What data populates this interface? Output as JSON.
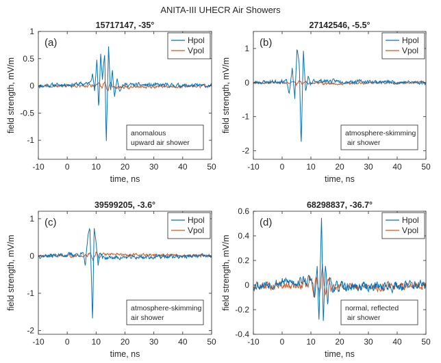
{
  "figure_title": "ANITA-III UHECR Air Showers",
  "colors": {
    "hpol": "#0072BD",
    "vpol": "#D95319",
    "axis": "#262626",
    "background": "#ffffff"
  },
  "chart_data": [
    {
      "type": "line",
      "title": "15717147, -35°",
      "panel_label": "(a)",
      "xlabel": "time, ns",
      "ylabel": "field strength, mV/m",
      "xlim": [
        -10,
        50
      ],
      "ylim": [
        -1.35,
        1.0
      ],
      "xticks": [
        -10,
        0,
        10,
        20,
        30,
        40,
        50
      ],
      "yticks": [
        -1,
        -0.5,
        0,
        0.5,
        1
      ],
      "ytick_labels": [
        "-1",
        "-0.5",
        "0",
        "0.5",
        "1"
      ],
      "legend": {
        "placement": "top-right",
        "entries": [
          "Hpol",
          "Vpol"
        ]
      },
      "annotation": [
        "anomalous",
        "upward air shower"
      ],
      "annotation_placement": "lower-right",
      "noise": {
        "hpol": 0.04,
        "vpol": 0.03,
        "seed": 11
      },
      "series": [
        {
          "name": "Hpol",
          "color": "#0072BD",
          "points": [
            [
              -10,
              0
            ],
            [
              7.5,
              0.04
            ],
            [
              8.8,
              0.22
            ],
            [
              9.5,
              -0.12
            ],
            [
              10.3,
              0.52
            ],
            [
              10.9,
              -0.43
            ],
            [
              11.6,
              0.6
            ],
            [
              12.2,
              0.1
            ],
            [
              13.0,
              0.62
            ],
            [
              13.5,
              -1.12
            ],
            [
              14.3,
              0.72
            ],
            [
              15.0,
              -0.15
            ],
            [
              15.6,
              0.3
            ],
            [
              16.4,
              -0.22
            ],
            [
              17.2,
              0.15
            ],
            [
              18.2,
              -0.08
            ],
            [
              19.0,
              0.02
            ],
            [
              50,
              0
            ]
          ]
        },
        {
          "name": "Vpol",
          "color": "#D95319",
          "points": [
            [
              -10,
              0
            ],
            [
              10,
              0
            ],
            [
              11,
              0.06
            ],
            [
              12,
              -0.05
            ],
            [
              13,
              0.1
            ],
            [
              14,
              -0.1
            ],
            [
              15,
              0.06
            ],
            [
              16,
              -0.03
            ],
            [
              50,
              0
            ]
          ]
        }
      ]
    },
    {
      "type": "line",
      "title": "27142546, -5.5°",
      "panel_label": "(b)",
      "xlabel": "time, ns",
      "ylabel": "field strength, mV/m",
      "xlim": [
        -10,
        50
      ],
      "ylim": [
        -2.25,
        1.5
      ],
      "xticks": [
        -10,
        0,
        10,
        20,
        30,
        40,
        50
      ],
      "yticks": [
        -2,
        -1,
        0,
        1
      ],
      "ytick_labels": [
        "-2",
        "-1",
        "0",
        "1"
      ],
      "legend": {
        "placement": "top-right",
        "entries": [
          "Hpol",
          "Vpol"
        ]
      },
      "annotation": [
        "atmosphere-skimming",
        " air shower"
      ],
      "annotation_placement": "lower-right",
      "noise": {
        "hpol": 0.06,
        "vpol": 0.04,
        "seed": 23
      },
      "series": [
        {
          "name": "Hpol",
          "color": "#0072BD",
          "points": [
            [
              -10,
              0
            ],
            [
              1.5,
              0.05
            ],
            [
              2.5,
              -0.35
            ],
            [
              3.5,
              0.45
            ],
            [
              4.4,
              -0.5
            ],
            [
              5.2,
              1.05
            ],
            [
              6.0,
              0.5
            ],
            [
              6.6,
              -1.85
            ],
            [
              7.4,
              0.9
            ],
            [
              8.2,
              -0.3
            ],
            [
              9.0,
              0.2
            ],
            [
              9.8,
              -0.1
            ],
            [
              11,
              0.05
            ],
            [
              50,
              0
            ]
          ]
        },
        {
          "name": "Vpol",
          "color": "#D95319",
          "points": [
            [
              -10,
              0
            ],
            [
              3,
              0
            ],
            [
              4,
              0.05
            ],
            [
              5,
              -0.06
            ],
            [
              6,
              0.08
            ],
            [
              7,
              -0.08
            ],
            [
              8,
              0.05
            ],
            [
              9,
              -0.03
            ],
            [
              50,
              0
            ]
          ]
        }
      ]
    },
    {
      "type": "line",
      "title": "39599205, -3.6°",
      "panel_label": "(c)",
      "xlabel": "time, ns",
      "ylabel": "field strength, mV/m",
      "xlim": [
        -10,
        50
      ],
      "ylim": [
        -2.1,
        1.2
      ],
      "xticks": [
        -10,
        0,
        10,
        20,
        30,
        40,
        50
      ],
      "yticks": [
        -2,
        -1,
        0,
        1
      ],
      "ytick_labels": [
        "-2",
        "-1",
        "0",
        "1"
      ],
      "legend": {
        "placement": "top-right",
        "entries": [
          "Hpol",
          "Vpol"
        ]
      },
      "annotation": [
        "atmosphere-skimming",
        "air shower"
      ],
      "annotation_placement": "lower-right",
      "noise": {
        "hpol": 0.06,
        "vpol": 0.04,
        "seed": 37
      },
      "series": [
        {
          "name": "Hpol",
          "color": "#0072BD",
          "points": [
            [
              -10,
              0
            ],
            [
              5.5,
              0.05
            ],
            [
              6.3,
              -0.25
            ],
            [
              7.0,
              0.4
            ],
            [
              7.8,
              0.78
            ],
            [
              8.3,
              -0.4
            ],
            [
              8.8,
              -1.8
            ],
            [
              9.3,
              0.85
            ],
            [
              10.0,
              0.3
            ],
            [
              10.7,
              -0.2
            ],
            [
              11.4,
              0.15
            ],
            [
              12.2,
              -0.05
            ],
            [
              50,
              0
            ]
          ]
        },
        {
          "name": "Vpol",
          "color": "#D95319",
          "points": [
            [
              -10,
              0
            ],
            [
              7,
              0
            ],
            [
              8,
              0.1
            ],
            [
              9,
              -0.12
            ],
            [
              10,
              0.12
            ],
            [
              11,
              -0.08
            ],
            [
              12,
              0.04
            ],
            [
              50,
              0
            ]
          ]
        }
      ]
    },
    {
      "type": "line",
      "title": "68298837, -36.7°",
      "panel_label": "(d)",
      "xlabel": "time, ns",
      "ylabel": "field strength, mV/m",
      "xlim": [
        -10,
        50
      ],
      "ylim": [
        -0.4,
        0.6
      ],
      "xticks": [
        -10,
        0,
        10,
        20,
        30,
        40,
        50
      ],
      "yticks": [
        -0.4,
        -0.2,
        0,
        0.2,
        0.4,
        0.6
      ],
      "ytick_labels": [
        "-0.4",
        "-0.2",
        "0",
        "0.2",
        "0.4",
        "0.6"
      ],
      "legend": {
        "placement": "top-right",
        "entries": [
          "Hpol",
          "Vpol"
        ]
      },
      "annotation": [
        "normal, reflected",
        " air shower"
      ],
      "annotation_placement": "lower-right",
      "noise": {
        "hpol": 0.045,
        "vpol": 0.035,
        "seed": 53
      },
      "series": [
        {
          "name": "Hpol",
          "color": "#0072BD",
          "points": [
            [
              -10,
              0
            ],
            [
              10.5,
              0.04
            ],
            [
              11.3,
              -0.12
            ],
            [
              12.2,
              0.14
            ],
            [
              12.8,
              -0.3
            ],
            [
              13.7,
              0.54
            ],
            [
              14.3,
              -0.32
            ],
            [
              15.0,
              0.15
            ],
            [
              15.8,
              -0.12
            ],
            [
              16.6,
              0.06
            ],
            [
              17.5,
              -0.02
            ],
            [
              50,
              0
            ]
          ]
        },
        {
          "name": "Vpol",
          "color": "#D95319",
          "points": [
            [
              -10,
              0
            ],
            [
              9,
              0
            ],
            [
              10,
              0.06
            ],
            [
              11,
              -0.07
            ],
            [
              12,
              0.08
            ],
            [
              13,
              -0.1
            ],
            [
              14,
              0.14
            ],
            [
              15,
              -0.08
            ],
            [
              16,
              0.06
            ],
            [
              17,
              -0.03
            ],
            [
              50,
              0
            ]
          ]
        }
      ]
    }
  ]
}
